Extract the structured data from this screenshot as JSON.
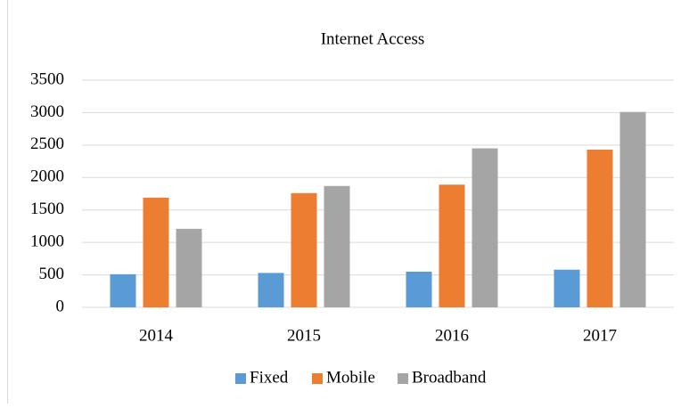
{
  "chart_data": {
    "type": "bar",
    "title": "Internet Access",
    "categories": [
      "2014",
      "2015",
      "2016",
      "2017"
    ],
    "series": [
      {
        "name": "Fixed",
        "color": "#5b9bd5",
        "values": [
          510,
          530,
          550,
          580
        ]
      },
      {
        "name": "Mobile",
        "color": "#ed7d31",
        "values": [
          1690,
          1760,
          1890,
          2430
        ]
      },
      {
        "name": "Broadband",
        "color": "#a5a5a5",
        "values": [
          1210,
          1870,
          2450,
          3010
        ]
      }
    ],
    "ylim": [
      0,
      3500
    ],
    "yticks": [
      0,
      500,
      1000,
      1500,
      2000,
      2500,
      3000,
      3500
    ],
    "grid": true,
    "legend": "bottom"
  }
}
